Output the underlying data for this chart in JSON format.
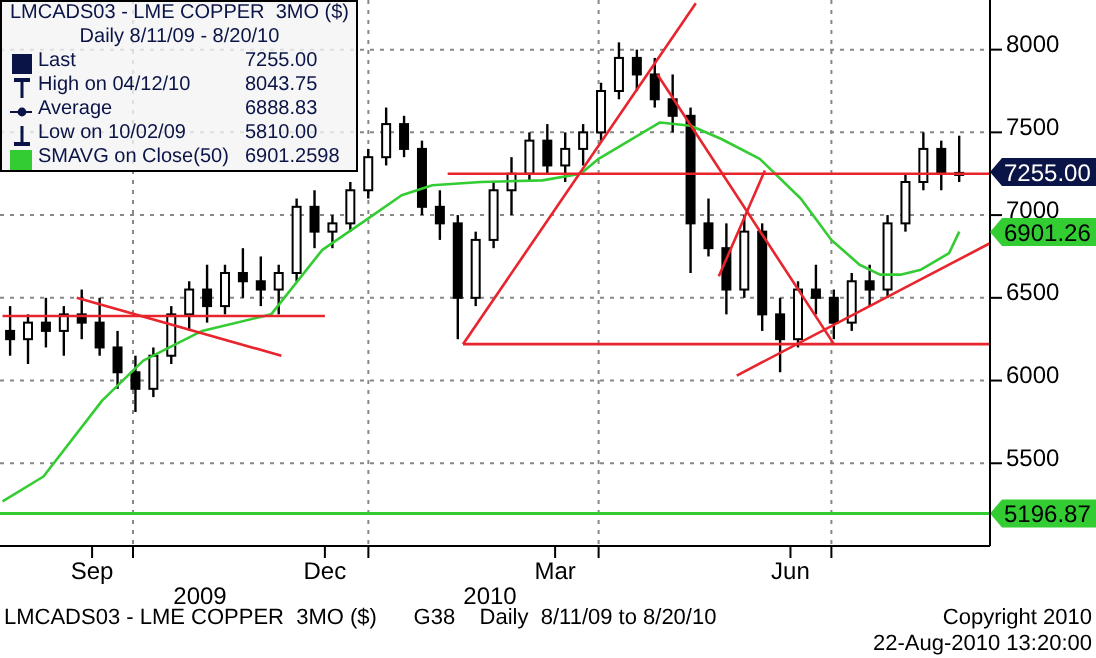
{
  "chart_data": {
    "type": "candlestick",
    "title": "LMCADS03 - LME COPPER  3MO ($)",
    "subtitle": "Daily 8/11/09 - 8/20/10",
    "x": [
      "2009-08-14",
      "2009-08-21",
      "2009-08-28",
      "2009-09-04",
      "2009-09-11",
      "2009-09-18",
      "2009-09-25",
      "2009-10-02",
      "2009-10-09",
      "2009-10-16",
      "2009-10-23",
      "2009-10-30",
      "2009-11-06",
      "2009-11-13",
      "2009-11-20",
      "2009-11-27",
      "2009-12-04",
      "2009-12-11",
      "2009-12-18",
      "2009-12-25",
      "2010-01-01",
      "2010-01-08",
      "2010-01-15",
      "2010-01-22",
      "2010-01-29",
      "2010-02-05",
      "2010-02-12",
      "2010-02-19",
      "2010-02-26",
      "2010-03-05",
      "2010-03-12",
      "2010-03-19",
      "2010-03-26",
      "2010-04-02",
      "2010-04-09",
      "2010-04-16",
      "2010-04-23",
      "2010-04-30",
      "2010-05-07",
      "2010-05-14",
      "2010-05-21",
      "2010-05-28",
      "2010-06-04",
      "2010-06-11",
      "2010-06-18",
      "2010-06-25",
      "2010-07-02",
      "2010-07-09",
      "2010-07-16",
      "2010-07-23",
      "2010-07-30",
      "2010-08-06",
      "2010-08-13",
      "2010-08-20"
    ],
    "ohlc": [
      [
        6300,
        6450,
        6150,
        6250
      ],
      [
        6250,
        6400,
        6100,
        6350
      ],
      [
        6350,
        6500,
        6200,
        6300
      ],
      [
        6300,
        6450,
        6150,
        6400
      ],
      [
        6400,
        6550,
        6250,
        6350
      ],
      [
        6350,
        6500,
        6150,
        6200
      ],
      [
        6200,
        6300,
        5950,
        6050
      ],
      [
        6050,
        6150,
        5810,
        5950
      ],
      [
        5950,
        6200,
        5900,
        6150
      ],
      [
        6150,
        6450,
        6100,
        6400
      ],
      [
        6400,
        6600,
        6300,
        6550
      ],
      [
        6550,
        6700,
        6350,
        6450
      ],
      [
        6450,
        6700,
        6400,
        6650
      ],
      [
        6650,
        6800,
        6500,
        6600
      ],
      [
        6600,
        6750,
        6450,
        6550
      ],
      [
        6550,
        6700,
        6400,
        6650
      ],
      [
        6650,
        7100,
        6600,
        7050
      ],
      [
        7050,
        7150,
        6800,
        6900
      ],
      [
        6900,
        7000,
        6800,
        6950
      ],
      [
        6950,
        7200,
        6900,
        7150
      ],
      [
        7150,
        7400,
        7100,
        7350
      ],
      [
        7350,
        7650,
        7300,
        7550
      ],
      [
        7550,
        7600,
        7350,
        7400
      ],
      [
        7400,
        7450,
        7000,
        7050
      ],
      [
        7050,
        7150,
        6850,
        6950
      ],
      [
        6950,
        7000,
        6250,
        6500
      ],
      [
        6500,
        6900,
        6450,
        6850
      ],
      [
        6850,
        7200,
        6800,
        7150
      ],
      [
        7150,
        7350,
        7000,
        7250
      ],
      [
        7250,
        7500,
        7200,
        7450
      ],
      [
        7450,
        7550,
        7250,
        7300
      ],
      [
        7300,
        7500,
        7200,
        7400
      ],
      [
        7400,
        7550,
        7300,
        7500
      ],
      [
        7500,
        7800,
        7450,
        7750
      ],
      [
        7750,
        8044,
        7700,
        7950
      ],
      [
        7950,
        8000,
        7750,
        7850
      ],
      [
        7850,
        7950,
        7650,
        7700
      ],
      [
        7700,
        7850,
        7500,
        7600
      ],
      [
        7600,
        7650,
        6650,
        6950
      ],
      [
        6950,
        7100,
        6750,
        6800
      ],
      [
        6800,
        6950,
        6400,
        6550
      ],
      [
        6550,
        7000,
        6500,
        6900
      ],
      [
        6900,
        6950,
        6300,
        6400
      ],
      [
        6400,
        6500,
        6050,
        6250
      ],
      [
        6250,
        6600,
        6200,
        6550
      ],
      [
        6550,
        6700,
        6400,
        6500
      ],
      [
        6500,
        6550,
        6250,
        6350
      ],
      [
        6350,
        6650,
        6300,
        6600
      ],
      [
        6600,
        6700,
        6450,
        6550
      ],
      [
        6550,
        7000,
        6500,
        6950
      ],
      [
        6950,
        7250,
        6900,
        7200
      ],
      [
        7200,
        7500,
        7150,
        7400
      ],
      [
        7400,
        7450,
        7150,
        7250
      ],
      [
        7250,
        7480,
        7200,
        7255
      ]
    ],
    "color": "#000000",
    "series": [
      {
        "type": "line",
        "name": "SMAVG on Close(50)",
        "color": "#33cc33",
        "x": [
          "2009-08-11",
          "2009-08-27",
          "2009-09-19",
          "2009-10-05",
          "2009-10-28",
          "2009-11-24",
          "2009-12-14",
          "2010-01-01",
          "2010-01-14",
          "2010-01-26",
          "2010-02-14",
          "2010-03-10",
          "2010-03-25",
          "2010-04-01",
          "2010-04-25",
          "2010-05-07",
          "2010-05-19",
          "2010-06-03",
          "2010-06-19",
          "2010-07-01",
          "2010-07-12",
          "2010-07-20",
          "2010-07-28",
          "2010-08-05",
          "2010-08-16",
          "2010-08-20"
        ],
        "values": [
          5270,
          5420,
          5880,
          6120,
          6300,
          6400,
          6790,
          6980,
          7120,
          7180,
          7200,
          7210,
          7250,
          7340,
          7560,
          7540,
          7460,
          7340,
          7100,
          6850,
          6700,
          6640,
          6640,
          6670,
          6770,
          6900
        ]
      },
      {
        "type": "line",
        "color": "#e8242c",
        "x": [
          "2009-08-11",
          "2009-12-15"
        ],
        "values": [
          6390,
          6390
        ]
      },
      {
        "type": "line",
        "color": "#e8242c",
        "x": [
          "2009-09-09",
          "2009-11-28"
        ],
        "values": [
          6500,
          6150
        ]
      },
      {
        "type": "line",
        "color": "#e8242c",
        "x": [
          "2010-02-07",
          "2010-05-09"
        ],
        "values": [
          6220,
          8280
        ]
      },
      {
        "type": "line",
        "color": "#e8242c",
        "x": [
          "2010-02-07",
          "2010-09-01"
        ],
        "values": [
          6220,
          6220
        ]
      },
      {
        "type": "line",
        "color": "#e8242c",
        "x": [
          "2010-02-01",
          "2010-09-01"
        ],
        "values": [
          7250,
          7250
        ]
      },
      {
        "type": "line",
        "color": "#e8242c",
        "x": [
          "2010-04-24",
          "2010-07-02"
        ],
        "values": [
          7850,
          6220
        ]
      },
      {
        "type": "line",
        "color": "#e8242c",
        "x": [
          "2010-05-18",
          "2010-06-05"
        ],
        "values": [
          6630,
          7270
        ]
      },
      {
        "type": "line",
        "color": "#e8242c",
        "x": [
          "2010-05-25",
          "2010-09-01"
        ],
        "values": [
          6030,
          6830
        ]
      }
    ],
    "xlim": [
      "2009-08-10",
      "2010-09-01"
    ],
    "xticks": [
      {
        "value": "2009-09-15",
        "label": "Sep"
      },
      {
        "value": "2009-12-15",
        "label": "Dec"
      },
      {
        "value": "2010-03-15",
        "label": "Mar"
      },
      {
        "value": "2010-06-15",
        "label": "Jun"
      },
      {
        "value": "2009-10-01",
        "label": null
      },
      {
        "value": "2010-01-01",
        "label": null
      },
      {
        "value": "2010-04-01",
        "label": null
      },
      {
        "value": "2010-07-01",
        "label": null
      }
    ],
    "ylim": [
      5000,
      8300
    ],
    "yticks": [
      5500,
      6000,
      6500,
      7000,
      7500,
      8000
    ],
    "grid": true,
    "legend": "top left",
    "ref_lines": [
      {
        "axis": "y",
        "value": 5196.87,
        "label": "5196.87",
        "color": "#33cc33"
      }
    ],
    "annotations": [
      "Last 7255.00",
      "High on 04/12/10 8043.75",
      "Average 6888.83",
      "Low on 10/02/09 5810.00",
      "6901.2598",
      "LMCADS03 - LME COPPER  3MO ($)      G38    Daily  8/11/09 to 8/20/10",
      "Copyright 2010",
      "22-Aug-2010 13:20:00",
      "2009",
      "2010",
      "7255.00",
      "6901.26"
    ]
  }
}
